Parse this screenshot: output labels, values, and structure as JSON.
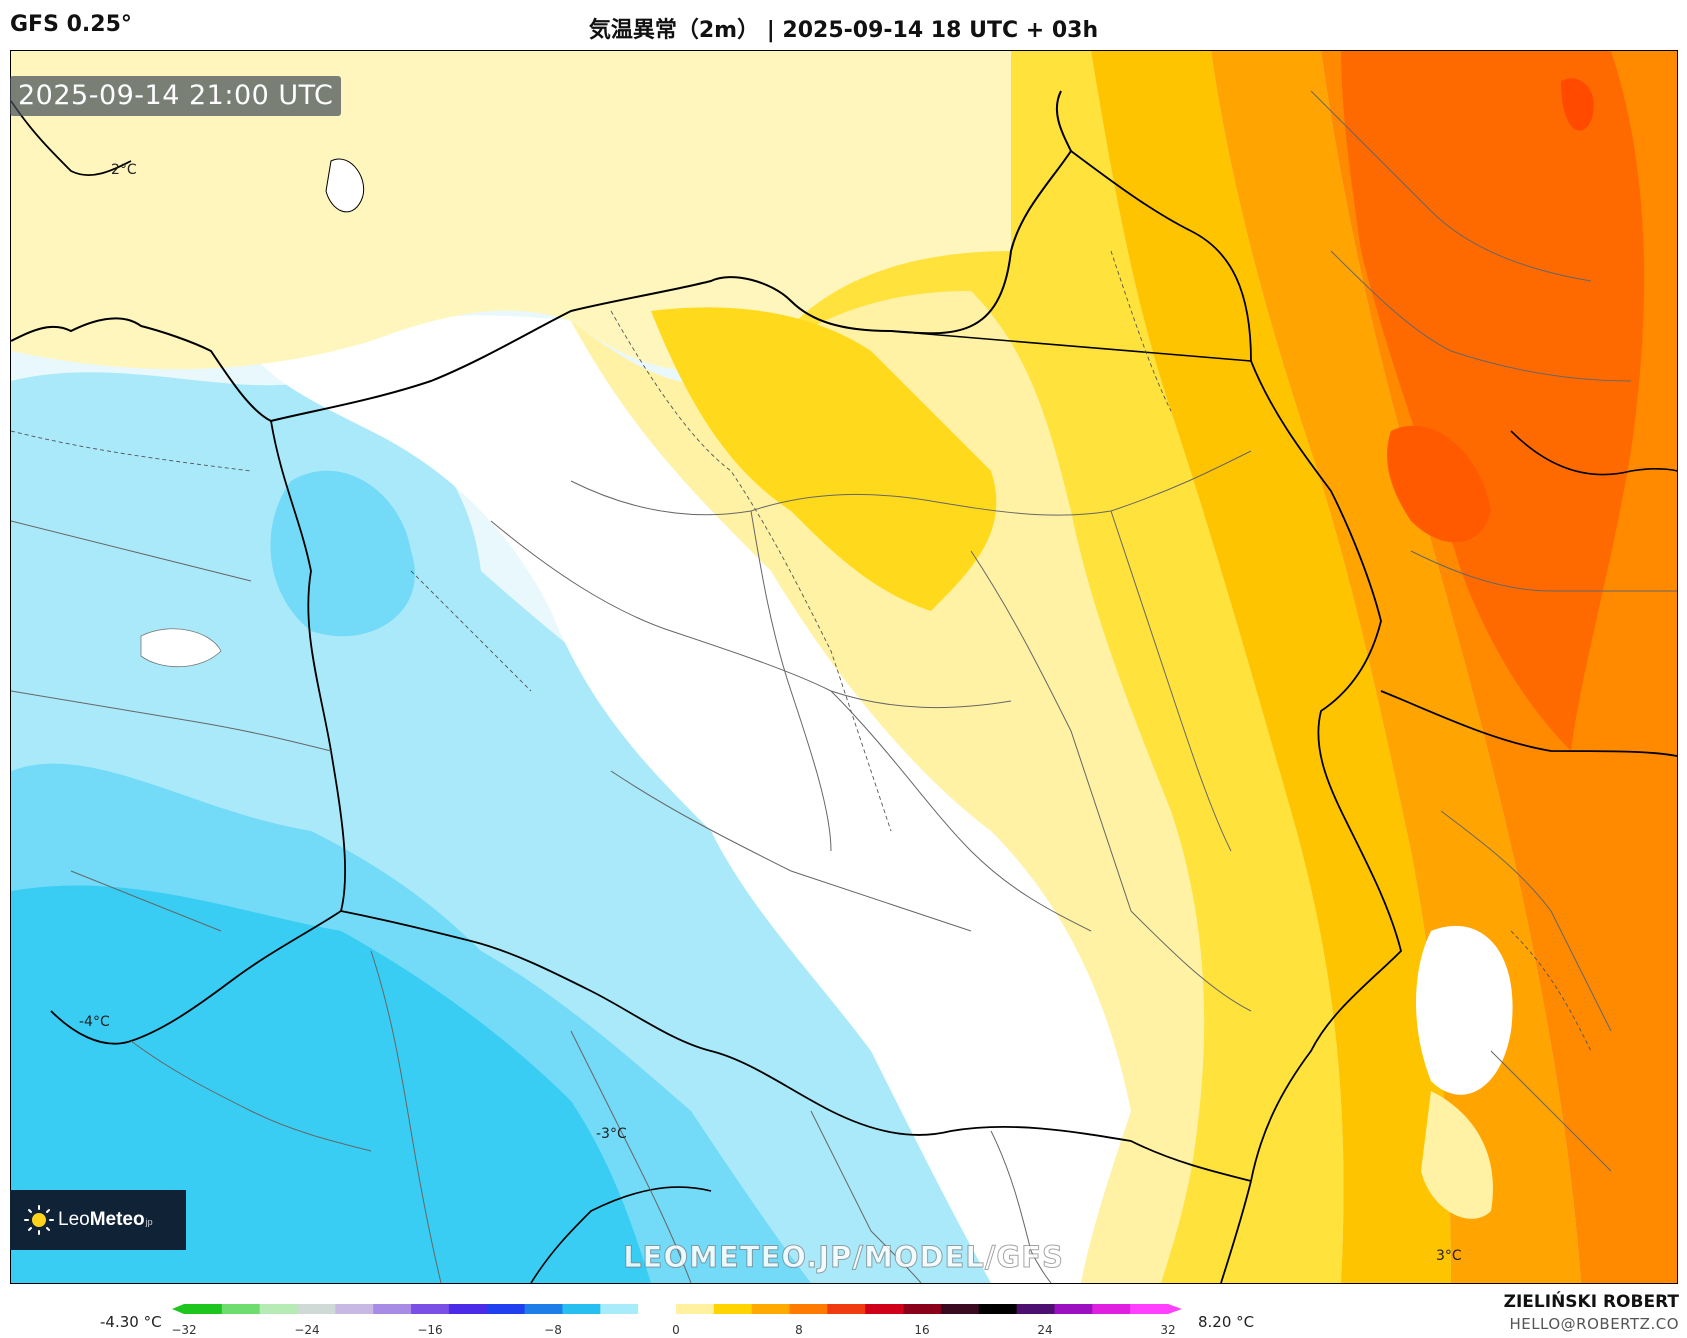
{
  "header": {
    "model": "GFS 0.25°",
    "title": "気温異常（2m） | 2025-09-14 18 UTC + 03h"
  },
  "map": {
    "timestamp": "2025-09-14 21:00 UTC",
    "watermark": "LEOMETEO.JP/MODEL/GFS",
    "logo": {
      "name_light": "Leo",
      "name_bold": "Meteo",
      "suffix": "jp"
    },
    "labels": [
      {
        "id": "nw",
        "text": "2°C"
      },
      {
        "id": "west",
        "text": "-4°C"
      },
      {
        "id": "south",
        "text": "-3°C"
      },
      {
        "id": "se",
        "text": "3°C"
      }
    ]
  },
  "legend": {
    "min_label": "-4.30 °C",
    "max_label": "8.20 °C",
    "ticks": [
      "−32",
      "−24",
      "−16",
      "−8",
      "0",
      "8",
      "16",
      "24",
      "32"
    ],
    "range": [
      -32,
      32
    ],
    "colors": [
      "#1ec51e",
      "#6fdc6f",
      "#b6ebb6",
      "#cfd9d6",
      "#c7b9e4",
      "#a88be4",
      "#7a4fe6",
      "#4b2ae8",
      "#2040f0",
      "#1e7ee8",
      "#27bff0",
      "#a8ecfb",
      "#ffffff",
      "#fff1a0",
      "#ffd400",
      "#ffaa00",
      "#ff7a00",
      "#f03a10",
      "#d00018",
      "#8a0018",
      "#3a0a20",
      "#000000",
      "#4b1070",
      "#9b10c0",
      "#e020e0",
      "#ff40ff"
    ]
  },
  "credit": {
    "name": "ZIELIŃSKI ROBERT",
    "email": "HELLO@ROBERTZ.CO"
  }
}
